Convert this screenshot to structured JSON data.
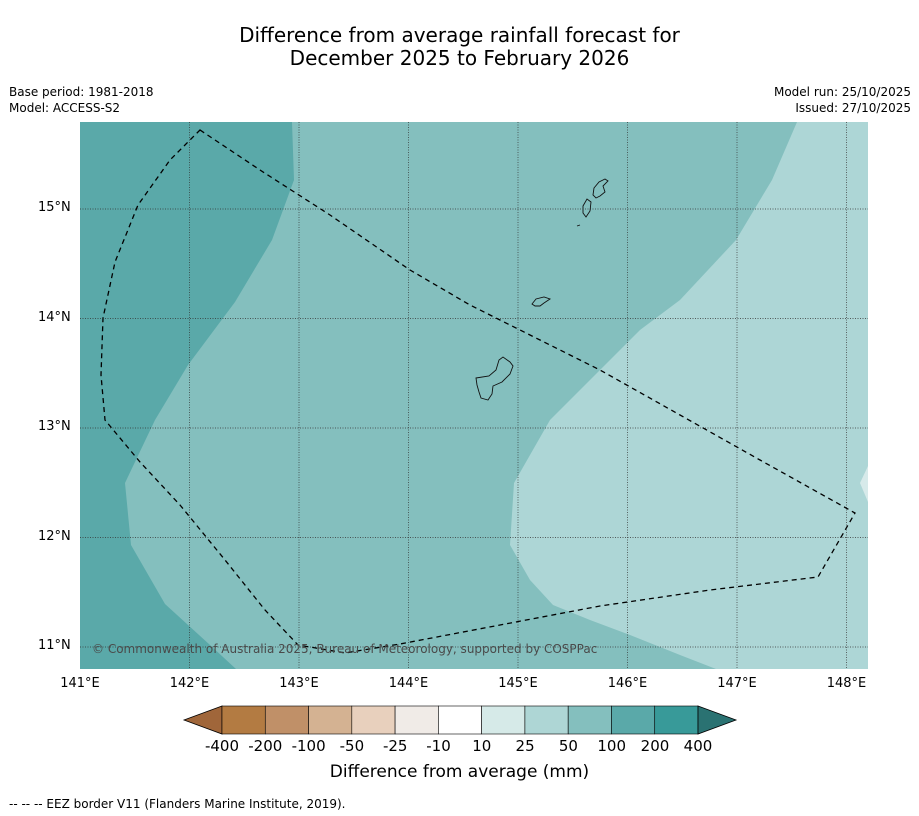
{
  "title_line1": "Difference from average rainfall forecast for",
  "title_line2": "December 2025 to February 2026",
  "meta": {
    "base_period": "Base period: 1981-2018",
    "model": "Model: ACCESS-S2",
    "model_run": "Model run: 25/10/2025",
    "issued": "Issued: 27/10/2025"
  },
  "map": {
    "lat_labels": [
      "15°N",
      "14°N",
      "13°N",
      "12°N",
      "11°N"
    ],
    "lon_labels": [
      "141°E",
      "142°E",
      "143°E",
      "144°E",
      "145°E",
      "146°E",
      "147°E",
      "148°E"
    ],
    "copyright": "© Commonwealth of Australia 2025, Bureau of Meteorology, supported by COSPPac",
    "colors": {
      "band_100_200": "#5aa9a9",
      "band_50_100": "#84bfbe",
      "band_25_50": "#add6d6",
      "band_10_25": "#d7eaea"
    }
  },
  "colorbar": {
    "labels": [
      "-400",
      "-200",
      "-100",
      "-50",
      "-25",
      "-10",
      "10",
      "25",
      "50",
      "100",
      "200",
      "400"
    ],
    "colors": [
      "#a0663a",
      "#b37b42",
      "#c09068",
      "#d4b292",
      "#e8d0bd",
      "#f0ebe7",
      "#ffffff",
      "#d6eae8",
      "#aed6d5",
      "#84bfbe",
      "#5aa9a9",
      "#389a99",
      "#2a7272"
    ],
    "title": "Difference from average (mm)"
  },
  "footnote": "--  --  -- EEZ border V11 (Flanders Marine Institute, 2019)."
}
